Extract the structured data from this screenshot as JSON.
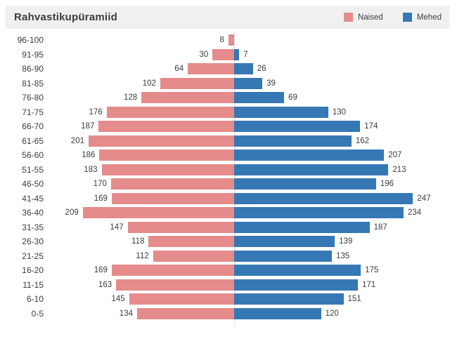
{
  "title": "Rahvastikupüramiid",
  "legend": {
    "naised_label": "Naised",
    "mehed_label": "Mehed"
  },
  "colors": {
    "naised": "#E58B8B",
    "mehed": "#3678B4",
    "header_bg": "#F0F0F0",
    "text": "#3C3C3C",
    "center_line": "#CCCCCC"
  },
  "chart_data": {
    "type": "bar",
    "subtype": "population-pyramid",
    "orientation": "horizontal",
    "title": "Rahvastikupüramiid",
    "legend_position": "top-right",
    "grid": false,
    "value_labels": true,
    "axis_max_each_side": 250,
    "categories": [
      "96-100",
      "91-95",
      "86-90",
      "81-85",
      "76-80",
      "71-75",
      "66-70",
      "61-65",
      "56-60",
      "51-55",
      "46-50",
      "41-45",
      "36-40",
      "31-35",
      "26-30",
      "21-25",
      "16-20",
      "11-15",
      "6-10",
      "0-5"
    ],
    "series": [
      {
        "name": "Naised",
        "side": "left",
        "color": "#E58B8B",
        "values": [
          8,
          30,
          64,
          102,
          128,
          176,
          187,
          201,
          186,
          183,
          170,
          169,
          209,
          147,
          118,
          112,
          169,
          163,
          145,
          134
        ]
      },
      {
        "name": "Mehed",
        "side": "right",
        "color": "#3678B4",
        "values": [
          null,
          7,
          26,
          39,
          69,
          130,
          174,
          162,
          207,
          213,
          196,
          247,
          234,
          187,
          139,
          135,
          175,
          171,
          151,
          120
        ]
      }
    ]
  }
}
